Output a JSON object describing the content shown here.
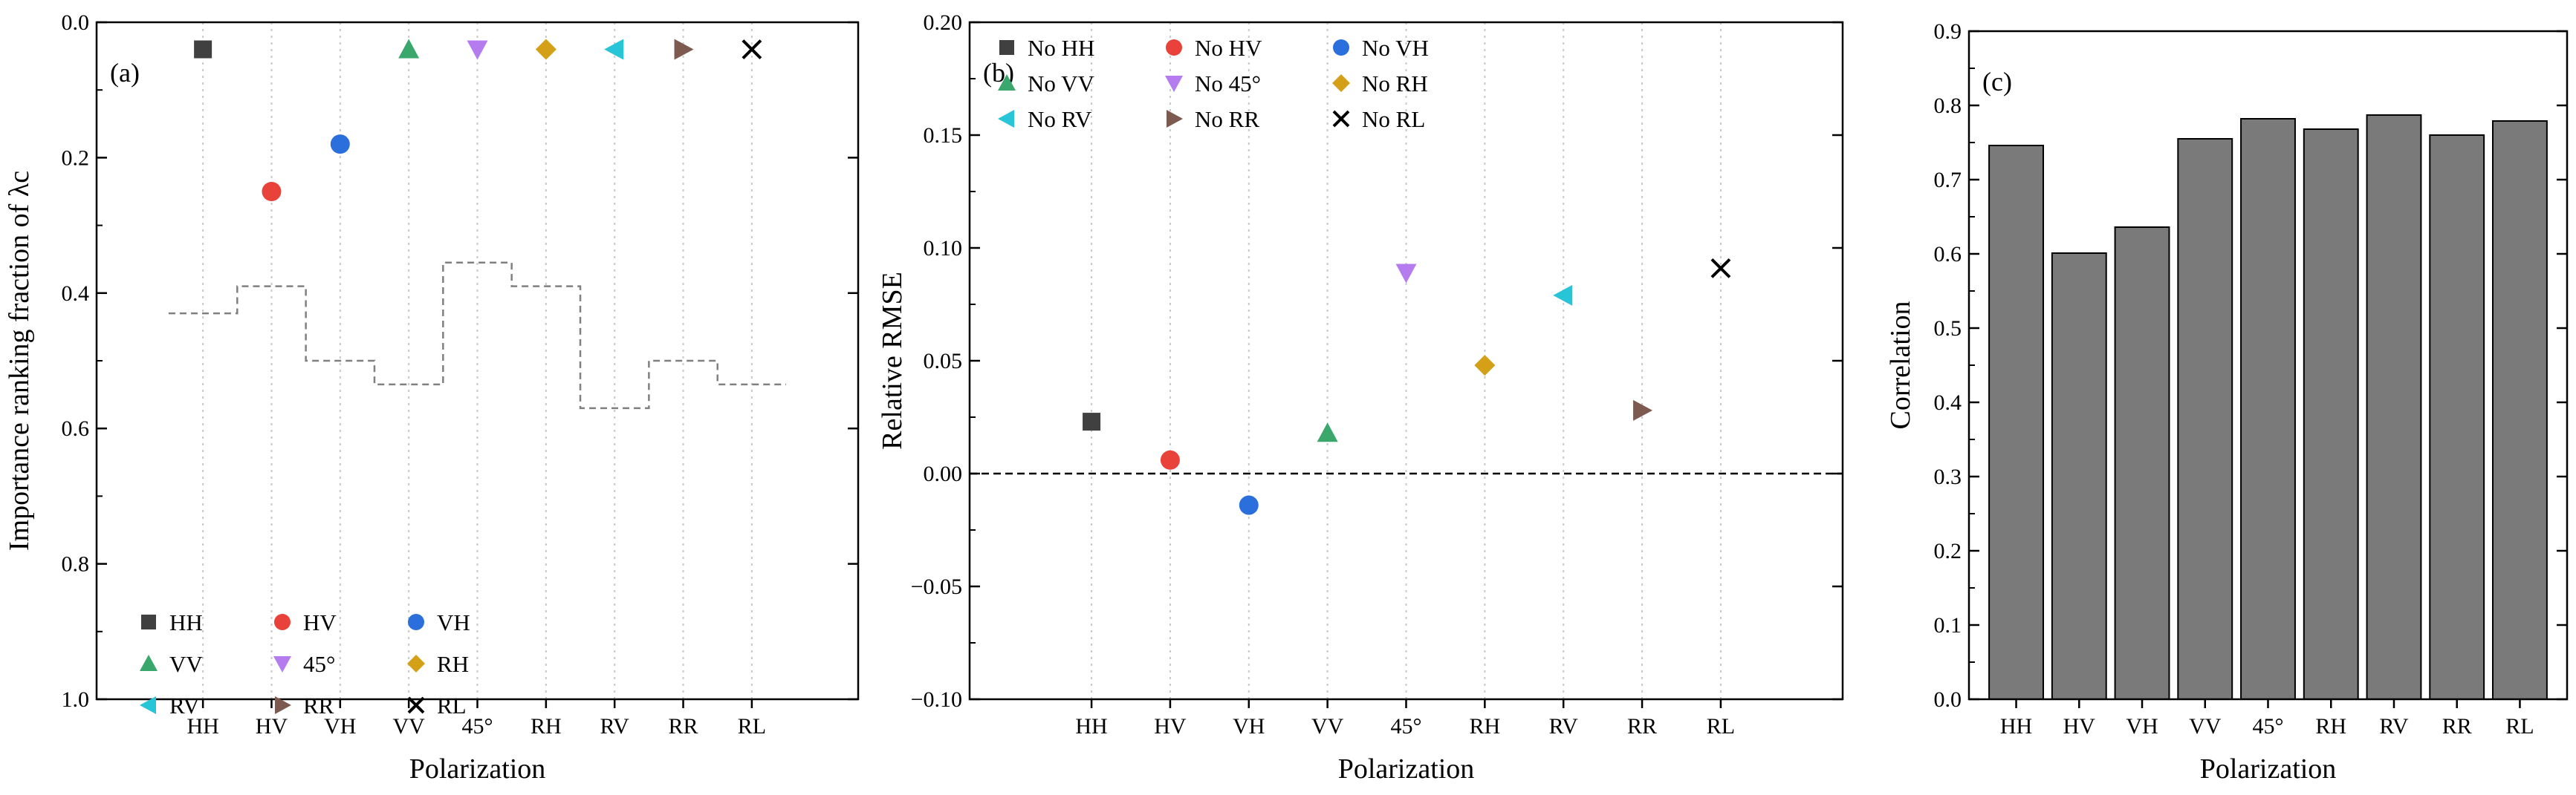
{
  "chart_data": [
    {
      "id": "a",
      "type": "scatter",
      "panel_label": "(a)",
      "xlabel": "Polarization",
      "ylabel": "Importance ranking fraction of λc",
      "categories": [
        "HH",
        "HV",
        "VH",
        "VV",
        "45°",
        "RH",
        "RV",
        "RR",
        "RL"
      ],
      "ylim": [
        0.0,
        1.0
      ],
      "y_inverted": true,
      "yticks": [
        0.0,
        0.2,
        0.4,
        0.6,
        0.8,
        1.0
      ],
      "ytick_labels": [
        "0.0",
        "0.2",
        "0.4",
        "0.6",
        "0.8",
        "1.0"
      ],
      "vertical_grid": true,
      "legend_position": "bottom-left",
      "legend_columns": 3,
      "points": [
        {
          "name": "HH",
          "x": "HH",
          "y": 0.04,
          "marker": "square",
          "color": "#404040"
        },
        {
          "name": "HV",
          "x": "HV",
          "y": 0.25,
          "marker": "circle",
          "color": "#e8423b"
        },
        {
          "name": "VH",
          "x": "VH",
          "y": 0.18,
          "marker": "circle",
          "color": "#2a6fdb"
        },
        {
          "name": "VV",
          "x": "VV",
          "y": 0.04,
          "marker": "triangle-up",
          "color": "#3aa76d"
        },
        {
          "name": "45°",
          "x": "45°",
          "y": 0.04,
          "marker": "triangle-down",
          "color": "#b57cf0"
        },
        {
          "name": "RH",
          "x": "RH",
          "y": 0.04,
          "marker": "diamond",
          "color": "#d4a017"
        },
        {
          "name": "RV",
          "x": "RV",
          "y": 0.04,
          "marker": "triangle-left",
          "color": "#28c4d8"
        },
        {
          "name": "RR",
          "x": "RR",
          "y": 0.04,
          "marker": "triangle-right",
          "color": "#7d5a50"
        },
        {
          "name": "RL",
          "x": "RL",
          "y": 0.04,
          "marker": "cross",
          "color": "#000000"
        }
      ],
      "step_series": {
        "name": "ranking step line",
        "style": "dashed",
        "color": "#808080",
        "values": [
          0.43,
          0.39,
          0.5,
          0.535,
          0.355,
          0.39,
          0.57,
          0.5,
          0.535
        ]
      }
    },
    {
      "id": "b",
      "type": "scatter",
      "panel_label": "(b)",
      "xlabel": "Polarization",
      "ylabel": "Relative RMSE",
      "categories": [
        "HH",
        "HV",
        "VH",
        "VV",
        "45°",
        "RH",
        "RV",
        "RR",
        "RL"
      ],
      "ylim": [
        -0.1,
        0.2
      ],
      "yticks": [
        -0.1,
        -0.05,
        0.0,
        0.05,
        0.1,
        0.15,
        0.2
      ],
      "ytick_labels": [
        "−0.10",
        "−0.05",
        "0.00",
        "0.05",
        "0.10",
        "0.15",
        "0.20"
      ],
      "vertical_grid": true,
      "zero_line": {
        "y": 0.0,
        "style": "dashed"
      },
      "legend_position": "top-left",
      "legend_columns": 3,
      "points": [
        {
          "name": "No HH",
          "x": "HH",
          "y": 0.023,
          "marker": "square",
          "color": "#404040"
        },
        {
          "name": "No HV",
          "x": "HV",
          "y": 0.006,
          "marker": "circle",
          "color": "#e8423b"
        },
        {
          "name": "No VH",
          "x": "VH",
          "y": -0.014,
          "marker": "circle",
          "color": "#2a6fdb"
        },
        {
          "name": "No VV",
          "x": "VV",
          "y": 0.018,
          "marker": "triangle-up",
          "color": "#3aa76d"
        },
        {
          "name": "No 45°",
          "x": "45°",
          "y": 0.089,
          "marker": "triangle-down",
          "color": "#b57cf0"
        },
        {
          "name": "No RH",
          "x": "RH",
          "y": 0.048,
          "marker": "diamond",
          "color": "#d4a017"
        },
        {
          "name": "No RV",
          "x": "RV",
          "y": 0.079,
          "marker": "triangle-left",
          "color": "#28c4d8"
        },
        {
          "name": "No RR",
          "x": "RR",
          "y": 0.028,
          "marker": "triangle-right",
          "color": "#7d5a50"
        },
        {
          "name": "No RL",
          "x": "RL",
          "y": 0.091,
          "marker": "cross",
          "color": "#000000"
        }
      ]
    },
    {
      "id": "c",
      "type": "bar",
      "panel_label": "(c)",
      "xlabel": "Polarization",
      "ylabel": "Correlation",
      "categories": [
        "HH",
        "HV",
        "VH",
        "VV",
        "45°",
        "RH",
        "RV",
        "RR",
        "RL"
      ],
      "values": [
        0.746,
        0.601,
        0.636,
        0.755,
        0.782,
        0.768,
        0.787,
        0.76,
        0.779
      ],
      "ylim": [
        0.0,
        0.9
      ],
      "yticks": [
        0.0,
        0.1,
        0.2,
        0.3,
        0.4,
        0.5,
        0.6,
        0.7,
        0.8,
        0.9
      ],
      "ytick_labels": [
        "0.0",
        "0.1",
        "0.2",
        "0.3",
        "0.4",
        "0.5",
        "0.6",
        "0.7",
        "0.8",
        "0.9"
      ],
      "bar_color": "#7a7a7a",
      "legend_position": "none"
    }
  ]
}
